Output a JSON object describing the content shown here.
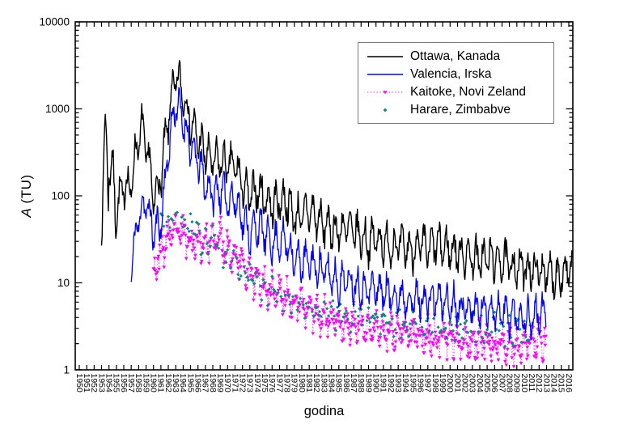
{
  "chart_data": {
    "type": "line",
    "title": "",
    "xlabel": "godina",
    "ylabel_italic": "A",
    "ylabel_rest": " (TU)",
    "y_scale": "log",
    "ylim": [
      1,
      10000
    ],
    "y_ticks": [
      1,
      10,
      100,
      1000,
      10000
    ],
    "x_ticks": {
      "start": 1950,
      "end": 2016,
      "step": 1
    },
    "x_range": [
      1949.45,
      2016.55
    ],
    "grid": false,
    "legend_position": "top-right",
    "frame_color": "#000000",
    "legend_border_color": "#7a7a7a",
    "series": [
      {
        "name": "Ottawa, Kanada",
        "type": "line",
        "color": "#000000",
        "line_width": 1.4,
        "start_year": 1953,
        "points_per_year": 12,
        "season_amp": 0.18,
        "noise_amp": 0.13,
        "phase": 0.25,
        "seed": 7,
        "amp_overrides": {
          "1953": 0.62,
          "1954": 0.34,
          "1958": 0.3,
          "1959": 0.26,
          "1962": 0.22,
          "1963": 0.2
        },
        "annual_values": [
          150,
          300,
          70,
          130,
          130,
          550,
          420,
          90,
          160,
          800,
          2400,
          1500,
          700,
          450,
          310,
          250,
          250,
          220,
          230,
          130,
          95,
          120,
          95,
          78,
          88,
          88,
          58,
          58,
          68,
          56,
          46,
          43,
          39,
          43,
          39,
          34,
          29,
          33,
          29,
          27,
          27,
          25,
          24,
          27,
          24,
          28,
          26,
          24,
          23,
          21,
          20,
          18,
          20,
          18,
          18,
          16,
          15,
          15,
          14,
          14,
          13,
          12,
          13,
          14
        ]
      },
      {
        "name": "Valencia, Irska",
        "type": "line",
        "color": "#0000ff",
        "line_width": 1.3,
        "start_year": 1957,
        "points_per_year": 12,
        "season_amp": 0.17,
        "noise_amp": 0.12,
        "phase": 0.25,
        "seed": 11,
        "amp_overrides": {},
        "annual_values": [
          15,
          60,
          85,
          38,
          48,
          330,
          1200,
          750,
          360,
          250,
          135,
          105,
          115,
          92,
          92,
          56,
          36,
          46,
          36,
          29,
          31,
          29,
          19,
          17,
          18,
          15,
          14,
          12,
          10,
          11,
          10,
          9,
          8.5,
          8.5,
          8,
          7.5,
          7,
          6.8,
          6.3,
          6.6,
          6.2,
          6.6,
          6.2,
          5.8,
          5.6,
          5.2,
          5.2,
          4.8,
          5.2,
          4.8,
          4.6,
          4.2,
          4.2,
          4.0,
          3.9,
          4.3
        ]
      },
      {
        "name": "Kaitoke, Novi Zeland",
        "type": "scatter-line",
        "color": "#ff00ff",
        "marker": "triangle-down",
        "line_style": "dotted",
        "line_width": 0.9,
        "start_year": 1960,
        "points_per_year": 12,
        "season_amp": 0.13,
        "noise_amp": 0.14,
        "phase": 0.75,
        "seed": 23,
        "amp_overrides": {},
        "annual_values": [
          14,
          22,
          33,
          38,
          36,
          31,
          29,
          30,
          28,
          33,
          24,
          21,
          17,
          12,
          10,
          9,
          8,
          7.5,
          6.5,
          6,
          5.5,
          5,
          4.6,
          4.2,
          3.9,
          3.6,
          3.4,
          3.3,
          3.1,
          3.0,
          2.9,
          2.8,
          2.7,
          2.6,
          2.6,
          2.5,
          2.5,
          2.4,
          2.4,
          2.3,
          2.3,
          2.2,
          2.2,
          2.1,
          2.1,
          2.1,
          2.0,
          2.0,
          2.0,
          1.9,
          2.0,
          2.0,
          2.2
        ]
      },
      {
        "name": "Harare, Zimbabve",
        "type": "scatter",
        "color": "#008b7d",
        "marker": "diamond",
        "start_year": 1961,
        "points_per_year": 5,
        "season_amp": 0.1,
        "noise_amp": 0.12,
        "phase": 0.75,
        "seed": 31,
        "amp_overrides": {},
        "annual_values": [
          45,
          50,
          55,
          45,
          40,
          35,
          30,
          28,
          25,
          20,
          16,
          13,
          11,
          9.5,
          8.5,
          7.8,
          7.2,
          6.8,
          6.2,
          5.8,
          5.4,
          5.1,
          4.9,
          4.6,
          4.4,
          4.3,
          4.1,
          4.0,
          3.9,
          3.8,
          3.7,
          3.6,
          3.5,
          3.5,
          3.4,
          3.4,
          3.3,
          3.3,
          3.2,
          3.2,
          3.1,
          3.1,
          3.0,
          3.0,
          3.0,
          2.9,
          2.9,
          2.9,
          2.8,
          2.8
        ]
      }
    ]
  }
}
